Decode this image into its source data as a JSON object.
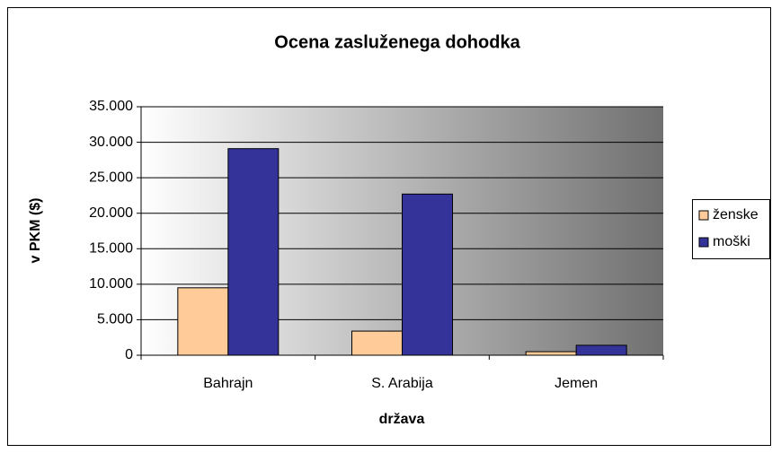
{
  "chart_data": {
    "type": "bar",
    "title": "Ocena zasluženega dohodka",
    "y_label": "v PKM ($)",
    "x_label": "država",
    "categories": [
      "Bahrajn",
      "S. Arabija",
      "Jemen"
    ],
    "series": [
      {
        "name": "ženske",
        "color": "#ffcc99",
        "values": [
          9500,
          3400,
          500
        ]
      },
      {
        "name": "moški",
        "color": "#333399",
        "values": [
          29100,
          22700,
          1400
        ]
      }
    ],
    "ylim": [
      0,
      35000
    ],
    "yticks": [
      0,
      {
        "value": 5000,
        "label": "5.000"
      },
      {
        "value": 10000,
        "label": "10.000"
      },
      {
        "value": 15000,
        "label": "15.000"
      },
      {
        "value": 20000,
        "label": "20.000"
      },
      {
        "value": 25000,
        "label": "25.000"
      },
      {
        "value": 30000,
        "label": "30.000"
      },
      {
        "value": 35000,
        "label": "35.000"
      }
    ],
    "grid": true,
    "legend": "right"
  }
}
